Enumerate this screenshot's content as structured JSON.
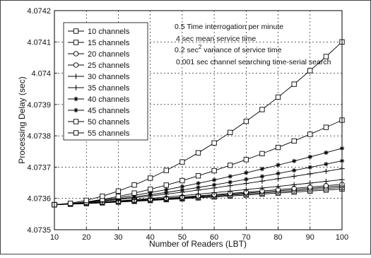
{
  "chart_data": {
    "type": "line",
    "title": "",
    "xlabel": "Number of Readers (LBT)",
    "ylabel": "Processing Delay (sec)",
    "xlim": [
      10,
      100
    ],
    "ylim": [
      4.0735,
      4.0742
    ],
    "x_ticks": [
      10,
      20,
      30,
      40,
      50,
      60,
      70,
      80,
      90,
      100
    ],
    "y_ticks": [
      4.0735,
      4.0736,
      4.0737,
      4.0738,
      4.0739,
      4.074,
      4.0741,
      4.0742
    ],
    "y_tick_labels": [
      "4.0735",
      "4.0736",
      "4.0737",
      "4.0738",
      "4.0739",
      "4.074",
      "4.0741",
      "4.0742"
    ],
    "grid": true,
    "legend_position": "top-left",
    "annotations": [
      "0.5 Time interrogation per minute",
      "4 sec mean service time",
      "0.2 sec",
      "2",
      " variance of service time",
      "0.001 sec channel searching time-serial search"
    ],
    "x": [
      10,
      15,
      20,
      25,
      30,
      35,
      40,
      45,
      50,
      55,
      60,
      65,
      70,
      75,
      80,
      85,
      90,
      95,
      100
    ],
    "series": [
      {
        "name": "10 channels",
        "marker": "square",
        "start": 4.07358,
        "end": 4.07363,
        "power": 1.2
      },
      {
        "name": "15 channels",
        "marker": "square",
        "start": 4.07358,
        "end": 4.073635,
        "power": 1.2
      },
      {
        "name": "20 channels",
        "marker": "circle",
        "start": 4.07358,
        "end": 4.07364,
        "power": 1.2
      },
      {
        "name": "25 channels",
        "marker": "circle",
        "start": 4.07358,
        "end": 4.073645,
        "power": 1.2
      },
      {
        "name": "30 channels",
        "marker": "plus",
        "start": 4.07358,
        "end": 4.07366,
        "power": 1.25
      },
      {
        "name": "35 channels",
        "marker": "plus",
        "start": 4.07358,
        "end": 4.073695,
        "power": 1.3
      },
      {
        "name": "40 channels",
        "marker": "star",
        "start": 4.07358,
        "end": 4.07372,
        "power": 1.35
      },
      {
        "name": "45 channels",
        "marker": "star",
        "start": 4.07358,
        "end": 4.07376,
        "power": 1.4
      },
      {
        "name": "50 channels",
        "marker": "square",
        "start": 4.07358,
        "end": 4.07385,
        "power": 1.55
      },
      {
        "name": "55 channels",
        "marker": "square",
        "start": 4.07358,
        "end": 4.0741,
        "power": 1.65
      }
    ]
  }
}
